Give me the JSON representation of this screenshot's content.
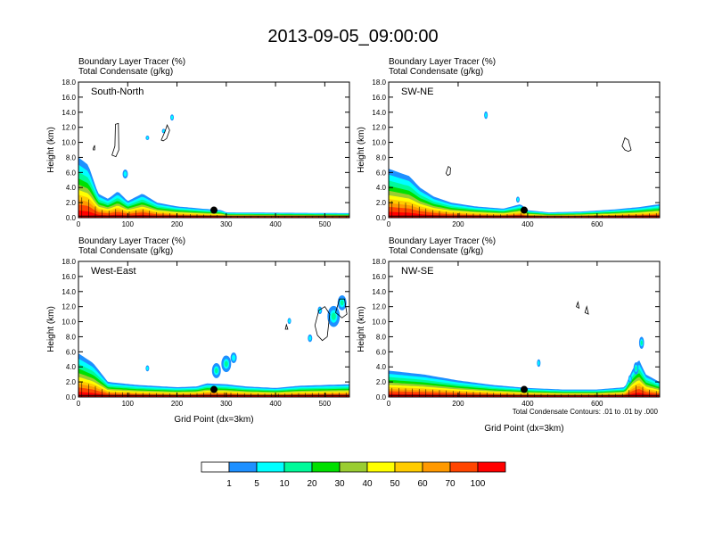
{
  "title": "2013-09-05_09:00:00",
  "subtitle_line1": "Boundary Layer Tracer   (%)",
  "subtitle_line2": "Total Condensate   (g/kg)",
  "ylabel": "Height (km)",
  "xlabel": "Grid Point (dx=3km)",
  "contour_note": "Total Condensate Contours: .01 to .01 by .000",
  "chart_data": [
    {
      "type": "heatmap",
      "panel": "South-North",
      "xlim": [
        0,
        550
      ],
      "ylim": [
        0,
        18
      ],
      "xticks": [
        "0",
        "100",
        "200",
        "300",
        "400",
        "500"
      ],
      "yticks": [
        "0.0",
        "2.0",
        "4.0",
        "6.0",
        "8.0",
        "10.0",
        "12.0",
        "14.0",
        "16.0",
        "18.0"
      ],
      "marker": [
        275,
        1.0
      ],
      "profile": [
        [
          0,
          8
        ],
        [
          20,
          7
        ],
        [
          40,
          3.2
        ],
        [
          60,
          2.5
        ],
        [
          80,
          3.5
        ],
        [
          100,
          2.2
        ],
        [
          130,
          3.2
        ],
        [
          160,
          2.0
        ],
        [
          200,
          1.5
        ],
        [
          250,
          1.2
        ],
        [
          290,
          1.0
        ],
        [
          300,
          0.7
        ],
        [
          550,
          0.6
        ]
      ],
      "blobs": [
        [
          95,
          5.8,
          0.6
        ],
        [
          190,
          13.3,
          0.4
        ],
        [
          173,
          11.5,
          0.3
        ],
        [
          140,
          10.6,
          0.3
        ]
      ],
      "cloud_contours": [
        [
          [
            68,
            8.3
          ],
          [
            74,
            9.5
          ],
          [
            75,
            12.4
          ],
          [
            81,
            12.5
          ],
          [
            82,
            9.0
          ],
          [
            76,
            8.1
          ]
        ],
        [
          [
            168,
            10.3
          ],
          [
            176,
            11.5
          ],
          [
            180,
            12.3
          ],
          [
            185,
            11.6
          ],
          [
            179,
            10.5
          ],
          [
            172,
            10.2
          ]
        ],
        [
          [
            30,
            9.2
          ],
          [
            33,
            9.6
          ],
          [
            33,
            9.0
          ],
          [
            30,
            9.0
          ]
        ]
      ]
    },
    {
      "type": "heatmap",
      "panel": "SW-NE",
      "xlim": [
        0,
        780
      ],
      "ylim": [
        0,
        18
      ],
      "xticks": [
        "0",
        "200",
        "400",
        "600"
      ],
      "yticks": [
        "0.0",
        "2.0",
        "4.0",
        "6.0",
        "8.0",
        "10.0",
        "12.0",
        "14.0",
        "16.0",
        "18.0"
      ],
      "marker": [
        390,
        1.0
      ],
      "profile": [
        [
          0,
          6.5
        ],
        [
          30,
          6.0
        ],
        [
          60,
          5.5
        ],
        [
          90,
          4.0
        ],
        [
          130,
          2.8
        ],
        [
          180,
          2.0
        ],
        [
          250,
          1.5
        ],
        [
          330,
          1.2
        ],
        [
          380,
          1.8
        ],
        [
          400,
          1.0
        ],
        [
          460,
          0.7
        ],
        [
          550,
          0.8
        ],
        [
          650,
          1.1
        ],
        [
          720,
          1.4
        ],
        [
          780,
          1.8
        ]
      ],
      "blobs": [
        [
          280,
          13.6,
          0.5
        ],
        [
          372,
          2.4,
          0.4
        ]
      ],
      "cloud_contours": [
        [
          [
            165,
            5.9
          ],
          [
            172,
            6.8
          ],
          [
            178,
            6.6
          ],
          [
            177,
            5.8
          ],
          [
            170,
            5.6
          ]
        ],
        [
          [
            672,
            9.5
          ],
          [
            680,
            10.6
          ],
          [
            690,
            10.3
          ],
          [
            698,
            9.0
          ],
          [
            690,
            8.8
          ],
          [
            680,
            9.0
          ]
        ]
      ]
    },
    {
      "type": "heatmap",
      "panel": "West-East",
      "xlim": [
        0,
        550
      ],
      "ylim": [
        0,
        18
      ],
      "xticks": [
        "0",
        "100",
        "200",
        "300",
        "400",
        "500"
      ],
      "yticks": [
        "0.0",
        "2.0",
        "4.0",
        "6.0",
        "8.0",
        "10.0",
        "12.0",
        "14.0",
        "16.0",
        "18.0"
      ],
      "marker": [
        275,
        1.0
      ],
      "profile": [
        [
          0,
          5.8
        ],
        [
          30,
          4.5
        ],
        [
          60,
          2.0
        ],
        [
          120,
          1.6
        ],
        [
          200,
          1.3
        ],
        [
          240,
          1.4
        ],
        [
          260,
          1.8
        ],
        [
          300,
          1.7
        ],
        [
          340,
          1.4
        ],
        [
          400,
          1.2
        ],
        [
          450,
          1.5
        ],
        [
          550,
          1.7
        ]
      ],
      "blobs": [
        [
          300,
          4.4,
          1.1
        ],
        [
          280,
          3.5,
          1.0
        ],
        [
          315,
          5.2,
          0.7
        ],
        [
          518,
          10.7,
          1.4
        ],
        [
          535,
          12.5,
          1.0
        ],
        [
          490,
          11.5,
          0.5
        ],
        [
          470,
          7.8,
          0.5
        ],
        [
          428,
          10.1,
          0.4
        ],
        [
          140,
          3.8,
          0.4
        ]
      ],
      "cloud_contours": [
        [
          [
            480,
            9.5
          ],
          [
            488,
            11.5
          ],
          [
            500,
            12.0
          ],
          [
            510,
            11.0
          ],
          [
            505,
            8.0
          ],
          [
            495,
            7.5
          ],
          [
            485,
            8.2
          ]
        ],
        [
          [
            522,
            11.2
          ],
          [
            530,
            13.0
          ],
          [
            540,
            13.0
          ],
          [
            545,
            11.0
          ],
          [
            535,
            10.5
          ]
        ],
        [
          [
            420,
            9.0
          ],
          [
            422,
            9.6
          ],
          [
            425,
            9.0
          ]
        ]
      ]
    },
    {
      "type": "heatmap",
      "panel": "NW-SE",
      "xlim": [
        0,
        780
      ],
      "ylim": [
        0,
        18
      ],
      "xticks": [
        "0",
        "200",
        "400",
        "600"
      ],
      "yticks": [
        "0.0",
        "2.0",
        "4.0",
        "6.0",
        "8.0",
        "10.0",
        "12.0",
        "14.0",
        "16.0",
        "18.0"
      ],
      "marker": [
        390,
        1.0
      ],
      "profile": [
        [
          0,
          3.5
        ],
        [
          100,
          3.0
        ],
        [
          200,
          2.2
        ],
        [
          300,
          1.6
        ],
        [
          400,
          1.2
        ],
        [
          500,
          1.0
        ],
        [
          600,
          1.0
        ],
        [
          680,
          1.3
        ],
        [
          700,
          3.5
        ],
        [
          720,
          5.0
        ],
        [
          740,
          3.0
        ],
        [
          780,
          2.0
        ]
      ],
      "blobs": [
        [
          432,
          4.5,
          0.5
        ],
        [
          728,
          7.2,
          0.8
        ],
        [
          712,
          3.8,
          0.8
        ],
        [
          695,
          2.4,
          0.5
        ]
      ],
      "cloud_contours": [
        [
          [
            540,
            12.0
          ],
          [
            545,
            12.6
          ],
          [
            548,
            11.8
          ]
        ],
        [
          [
            565,
            11.2
          ],
          [
            570,
            12.0
          ],
          [
            575,
            11.0
          ]
        ]
      ]
    }
  ],
  "colorbar": {
    "labels": [
      "1",
      "5",
      "10",
      "20",
      "30",
      "40",
      "50",
      "60",
      "70",
      "100"
    ],
    "colors": [
      "#ffffff",
      "#1e90ff",
      "#00ffff",
      "#00fa9a",
      "#00e000",
      "#9acd32",
      "#ffff00",
      "#ffcc00",
      "#ff9900",
      "#ff4500",
      "#ff0000"
    ]
  }
}
